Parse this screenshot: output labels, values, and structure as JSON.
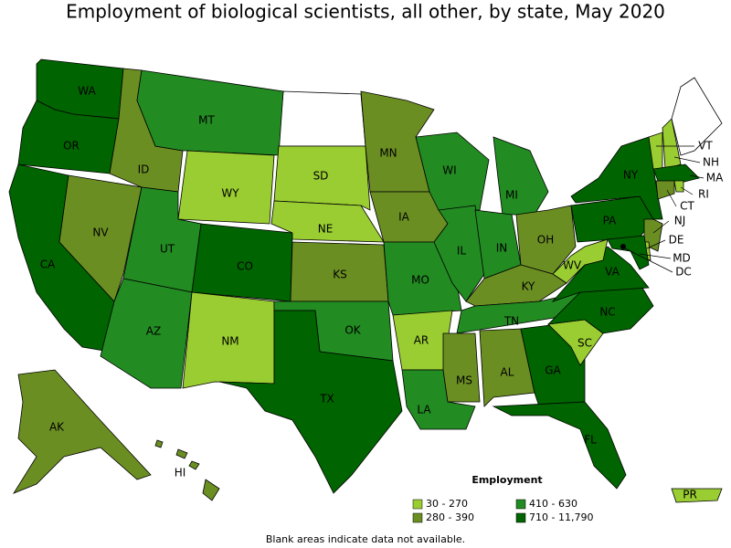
{
  "title": "Employment of biological scientists, all other, by state, May 2020",
  "legend": {
    "title": "Employment",
    "items": [
      {
        "label": "30 - 270",
        "color": "#9acd32"
      },
      {
        "label": "280 - 390",
        "color": "#6b8e23"
      },
      {
        "label": "410 - 630",
        "color": "#228b22"
      },
      {
        "label": "710 - 11,790",
        "color": "#006400"
      }
    ]
  },
  "states": [
    {
      "name": "WA",
      "bin": 3
    },
    {
      "name": "OR",
      "bin": 3
    },
    {
      "name": "CA",
      "bin": 3
    },
    {
      "name": "NV",
      "bin": 1
    },
    {
      "name": "ID",
      "bin": 1
    },
    {
      "name": "MT",
      "bin": 2
    },
    {
      "name": "WY",
      "bin": 0
    },
    {
      "name": "UT",
      "bin": 2
    },
    {
      "name": "CO",
      "bin": 3
    },
    {
      "name": "AZ",
      "bin": 2
    },
    {
      "name": "NM",
      "bin": 0
    },
    {
      "name": "SD",
      "bin": 0
    },
    {
      "name": "NE",
      "bin": 0
    },
    {
      "name": "KS",
      "bin": 1
    },
    {
      "name": "OK",
      "bin": 2
    },
    {
      "name": "TX",
      "bin": 3
    },
    {
      "name": "MN",
      "bin": 1
    },
    {
      "name": "IA",
      "bin": 1
    },
    {
      "name": "MO",
      "bin": 2
    },
    {
      "name": "AR",
      "bin": 0
    },
    {
      "name": "LA",
      "bin": 2
    },
    {
      "name": "WI",
      "bin": 2
    },
    {
      "name": "IL",
      "bin": 2
    },
    {
      "name": "MI",
      "bin": 2
    },
    {
      "name": "IN",
      "bin": 2
    },
    {
      "name": "OH",
      "bin": 1
    },
    {
      "name": "KY",
      "bin": 1
    },
    {
      "name": "TN",
      "bin": 2
    },
    {
      "name": "MS",
      "bin": 1
    },
    {
      "name": "AL",
      "bin": 1
    },
    {
      "name": "GA",
      "bin": 3
    },
    {
      "name": "FL",
      "bin": 3
    },
    {
      "name": "SC",
      "bin": 0
    },
    {
      "name": "NC",
      "bin": 3
    },
    {
      "name": "VA",
      "bin": 3
    },
    {
      "name": "WV",
      "bin": 0
    },
    {
      "name": "PA",
      "bin": 3
    },
    {
      "name": "NY",
      "bin": 3
    },
    {
      "name": "VT",
      "bin": 0
    },
    {
      "name": "NH",
      "bin": 0
    },
    {
      "name": "MA",
      "bin": 3
    },
    {
      "name": "RI",
      "bin": 0
    },
    {
      "name": "CT",
      "bin": 1
    },
    {
      "name": "NJ",
      "bin": 1
    },
    {
      "name": "DE",
      "bin": 0
    },
    {
      "name": "MD",
      "bin": 3
    },
    {
      "name": "DC",
      "bin": 3
    },
    {
      "name": "AK",
      "bin": 1
    },
    {
      "name": "HI",
      "bin": 1
    },
    {
      "name": "PR",
      "bin": 0
    }
  ],
  "note": "Blank areas indicate data not available."
}
